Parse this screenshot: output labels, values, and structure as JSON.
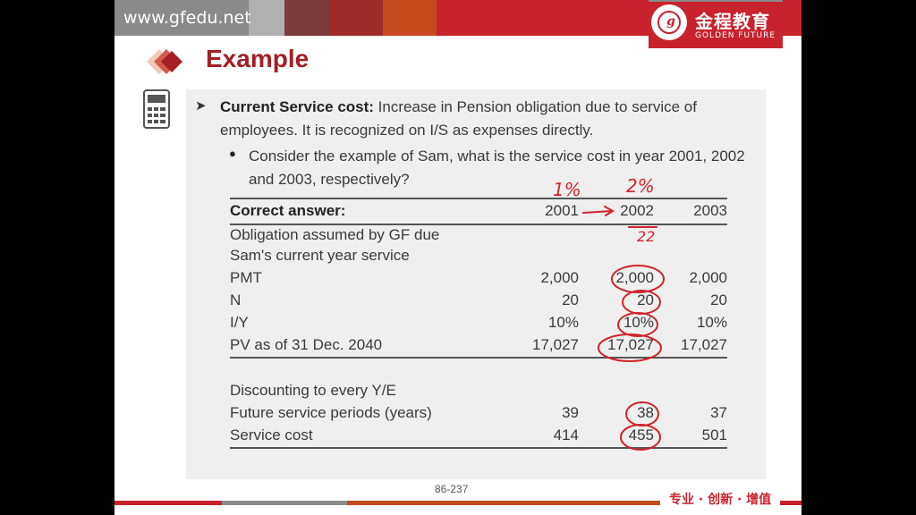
{
  "header": {
    "url": "www.gfedu.net",
    "brand_cn": "金程教育",
    "brand_en": "GOLDEN FUTURE",
    "seal_letter": "g",
    "accent": "#c8232c"
  },
  "title": "Example",
  "bullet1": {
    "term": "Current Service cost:",
    "text": " Increase in Pension obligation due to service of employees.  It is recognized on I/S as expenses directly."
  },
  "bullet2": "Consider the example of Sam, what is the service cost in year 2001, 2002 and 2003, respectively?",
  "table": {
    "header": {
      "label": "Correct answer:",
      "cols": [
        "2001",
        "2002",
        "2003"
      ]
    },
    "rows": [
      {
        "label": "Obligation assumed by GF due",
        "vals": [
          "",
          "",
          ""
        ]
      },
      {
        "label": "Sam's current year service",
        "vals": [
          "",
          "",
          ""
        ]
      },
      {
        "label": "PMT",
        "vals": [
          "2,000",
          "2,000",
          "2,000"
        ]
      },
      {
        "label": "N",
        "vals": [
          "20",
          "20",
          "20"
        ]
      },
      {
        "label": "I/Y",
        "vals": [
          "10%",
          "10%",
          "10%"
        ]
      },
      {
        "label": "PV as of 31 Dec. 2040",
        "vals": [
          "17,027",
          "17,027",
          "17,027"
        ]
      },
      {
        "label": "Discounting to every Y/E",
        "vals": [
          "",
          "",
          ""
        ]
      },
      {
        "label": "Future service periods (years)",
        "vals": [
          "39",
          "38",
          "37"
        ]
      },
      {
        "label": "Service cost",
        "vals": [
          "414",
          "455",
          "501"
        ]
      }
    ]
  },
  "annotations": {
    "above_2001": "1%",
    "above_2002": "2%",
    "below_2002": "22"
  },
  "footer": {
    "page": "86-237",
    "slogan": "专业 · 创新 · 增值"
  }
}
